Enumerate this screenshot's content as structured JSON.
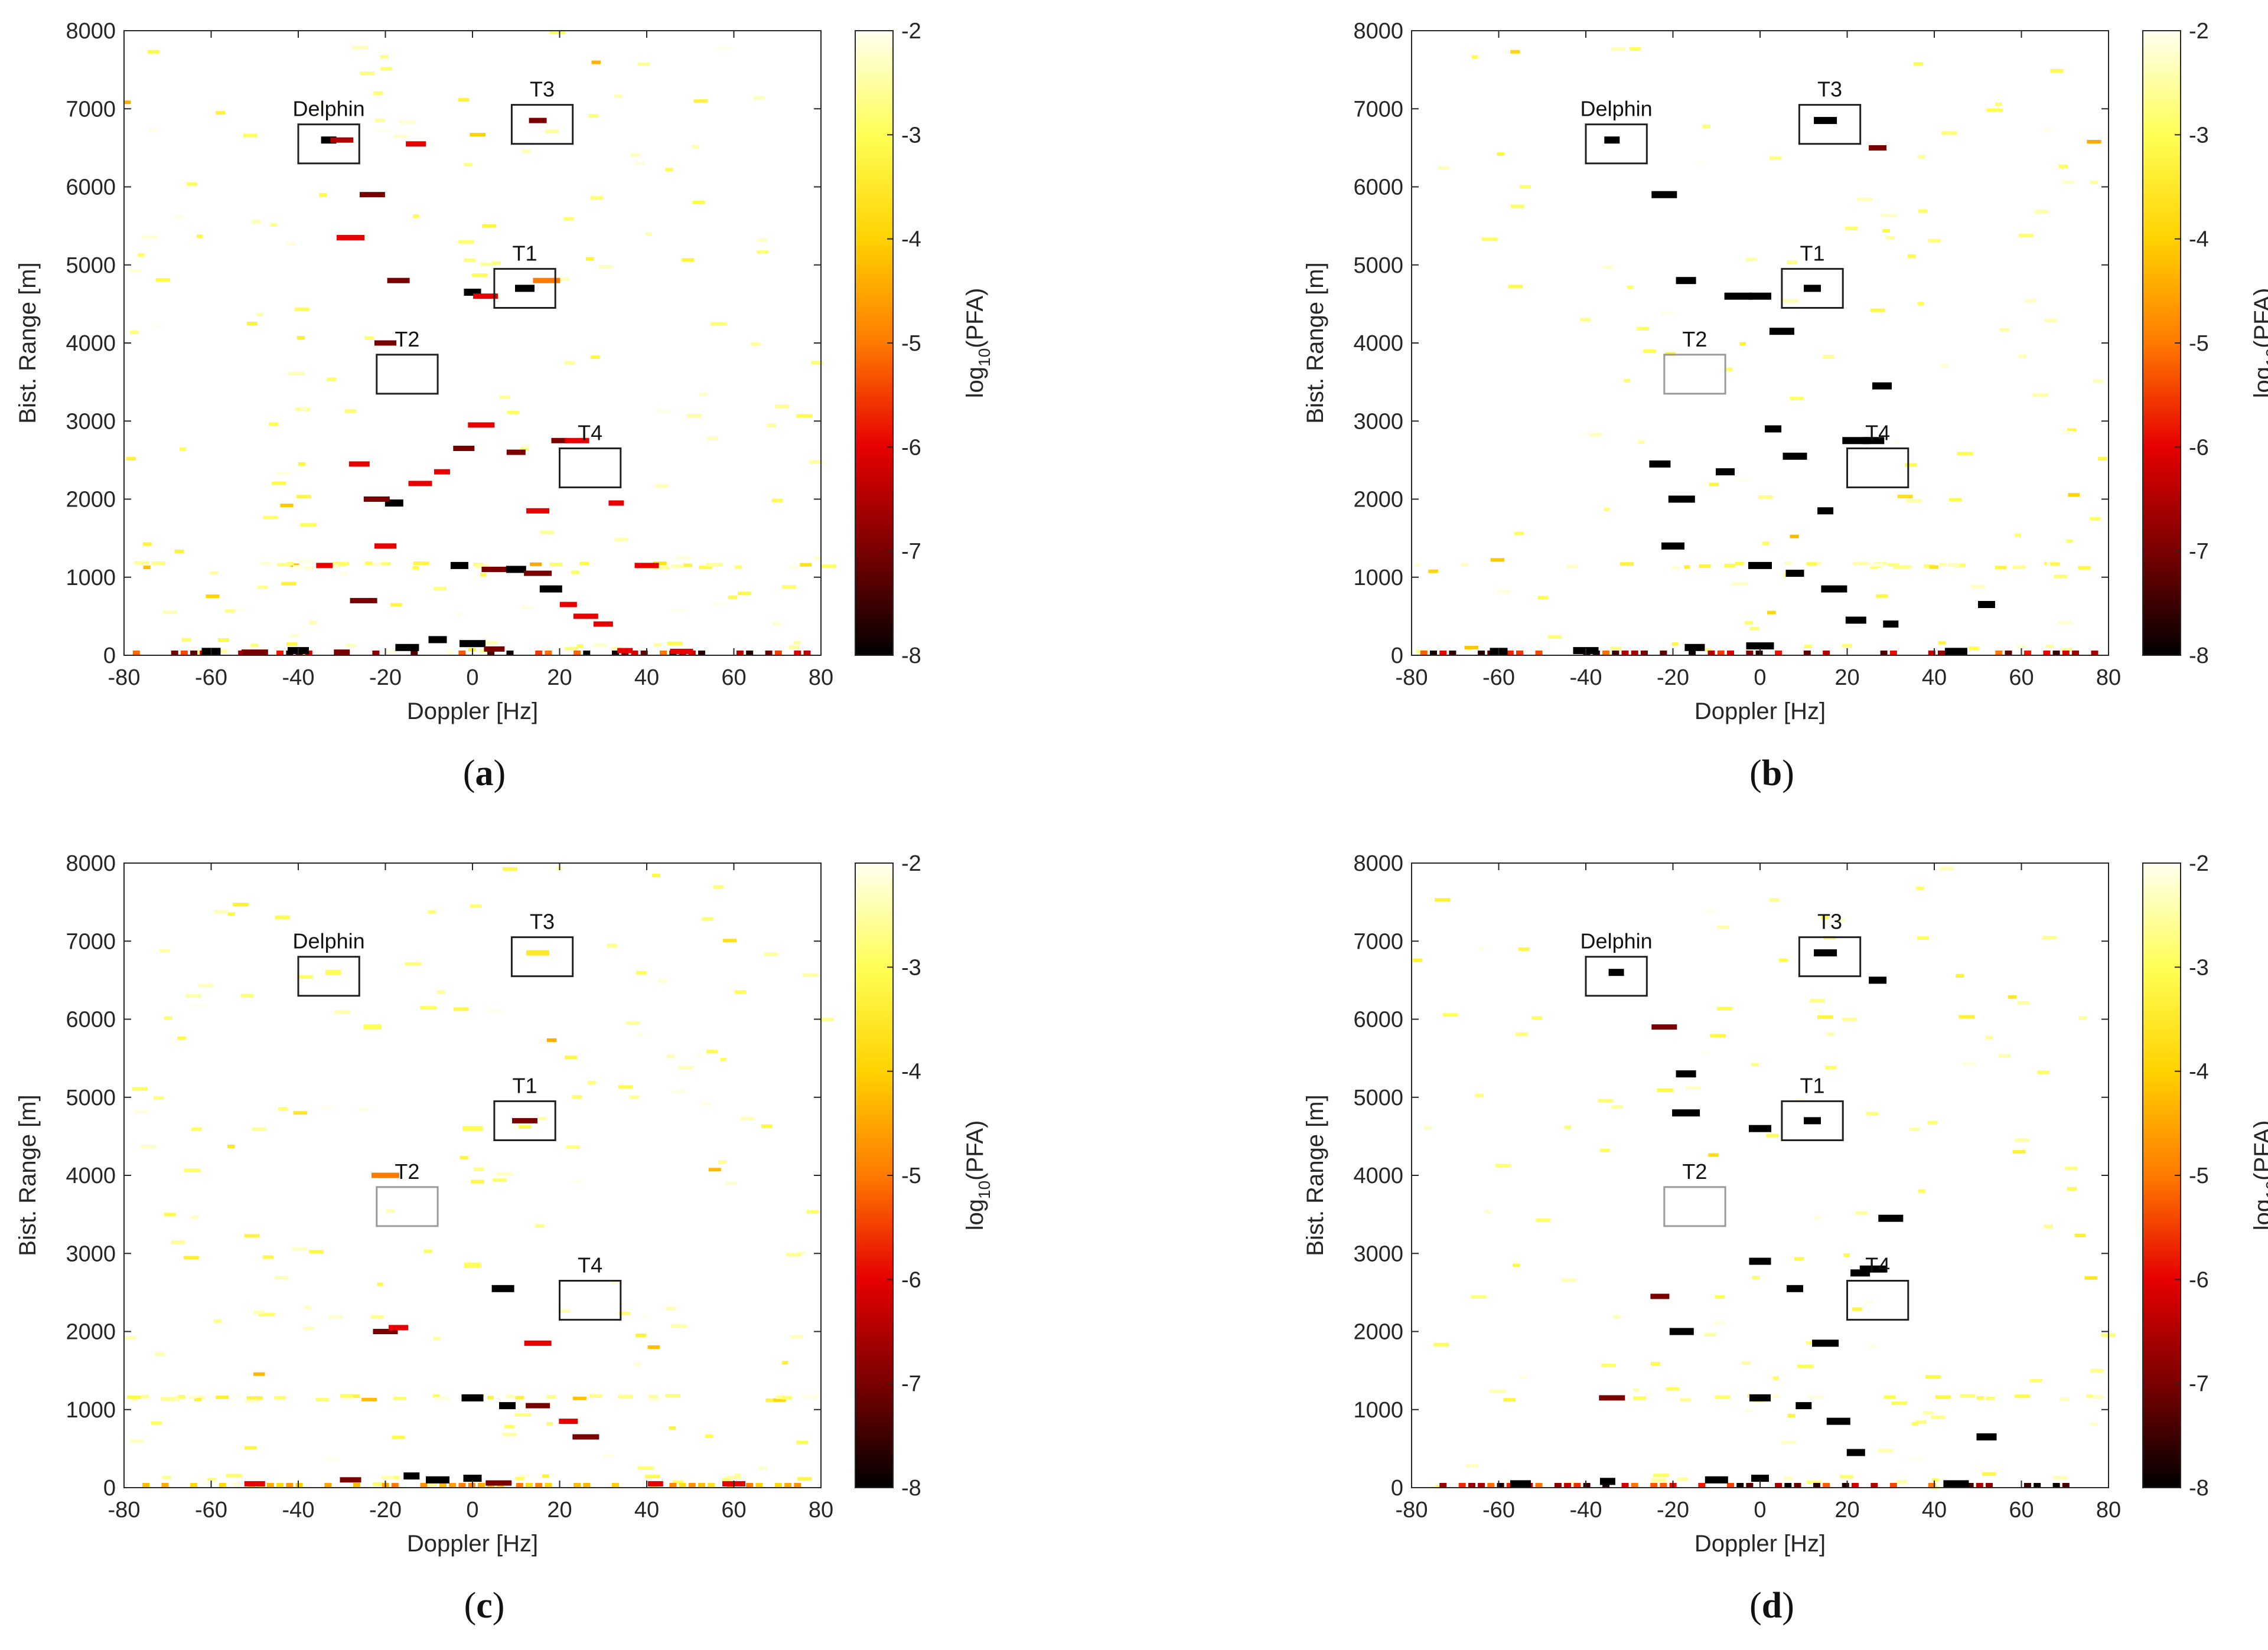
{
  "figure": {
    "colormap": {
      "name": "hot",
      "stops": [
        "#000000",
        "#7a0000",
        "#e60000",
        "#ff7a00",
        "#ffd200",
        "#ffff55",
        "#fffff0"
      ],
      "background": "#ffffff"
    },
    "colorbar": {
      "label_main": "log",
      "label_sub": "10",
      "label_tail": "(PFA)",
      "ticks": [
        "-2",
        "-3",
        "-4",
        "-5",
        "-6",
        "-7",
        "-8"
      ]
    }
  },
  "chart_data": [
    {
      "type": "heatmap",
      "panel": "a",
      "caption": "a",
      "xlabel": "Doppler [Hz]",
      "ylabel": "Bist. Range [m]",
      "xlim": [
        -80,
        80
      ],
      "ylim": [
        0,
        8000
      ],
      "xticks": [
        "-80",
        "-60",
        "-40",
        "-20",
        "0",
        "20",
        "40",
        "60",
        "80"
      ],
      "yticks": [
        "0",
        "1000",
        "2000",
        "3000",
        "4000",
        "5000",
        "6000",
        "7000",
        "8000"
      ],
      "clim": [
        -8,
        -2
      ],
      "target_boxes": [
        {
          "label": "Delphin",
          "doppler": [
            -40,
            -26
          ],
          "range": [
            6300,
            6800
          ],
          "style": "dark"
        },
        {
          "label": "T3",
          "doppler": [
            9,
            23
          ],
          "range": [
            6550,
            7050
          ],
          "style": "dark"
        },
        {
          "label": "T1",
          "doppler": [
            5,
            19
          ],
          "range": [
            4450,
            4950
          ],
          "style": "dark"
        },
        {
          "label": "T2",
          "doppler": [
            -22,
            -8
          ],
          "range": [
            3350,
            3850
          ],
          "style": "dark"
        },
        {
          "label": "T4",
          "doppler": [
            20,
            34
          ],
          "range": [
            2150,
            2650
          ],
          "style": "dark"
        }
      ],
      "detections": [
        {
          "doppler": -33,
          "range": 6600,
          "log_pfa": -8
        },
        {
          "doppler": -30,
          "range": 6600,
          "log_pfa": -6.5
        },
        {
          "doppler": 15,
          "range": 6850,
          "log_pfa": -7
        },
        {
          "doppler": -23,
          "range": 5900,
          "log_pfa": -7
        },
        {
          "doppler": -13,
          "range": 6550,
          "log_pfa": -6
        },
        {
          "doppler": -28,
          "range": 5350,
          "log_pfa": -6
        },
        {
          "doppler": -17,
          "range": 4800,
          "log_pfa": -7
        },
        {
          "doppler": 0,
          "range": 4650,
          "log_pfa": -8
        },
        {
          "doppler": 3,
          "range": 4600,
          "log_pfa": -6
        },
        {
          "doppler": 12,
          "range": 4700,
          "log_pfa": -8
        },
        {
          "doppler": 17,
          "range": 4800,
          "log_pfa": -5
        },
        {
          "doppler": -20,
          "range": 4000,
          "log_pfa": -7
        },
        {
          "doppler": 20,
          "range": 2750,
          "log_pfa": -7
        },
        {
          "doppler": 24,
          "range": 2750,
          "log_pfa": -6
        },
        {
          "doppler": 10,
          "range": 2600,
          "log_pfa": -7
        },
        {
          "doppler": 2,
          "range": 2950,
          "log_pfa": -6
        },
        {
          "doppler": -2,
          "range": 2650,
          "log_pfa": -7
        },
        {
          "doppler": -7,
          "range": 2350,
          "log_pfa": -6
        },
        {
          "doppler": -12,
          "range": 2200,
          "log_pfa": -6
        },
        {
          "doppler": -18,
          "range": 1950,
          "log_pfa": -8
        },
        {
          "doppler": -22,
          "range": 2000,
          "log_pfa": -7
        },
        {
          "doppler": -26,
          "range": 2450,
          "log_pfa": -6
        },
        {
          "doppler": 33,
          "range": 1950,
          "log_pfa": -6
        },
        {
          "doppler": 15,
          "range": 1850,
          "log_pfa": -6
        },
        {
          "doppler": -3,
          "range": 1150,
          "log_pfa": -8
        },
        {
          "doppler": 5,
          "range": 1100,
          "log_pfa": -7
        },
        {
          "doppler": 10,
          "range": 1100,
          "log_pfa": -8
        },
        {
          "doppler": 15,
          "range": 1050,
          "log_pfa": -7
        },
        {
          "doppler": 18,
          "range": 850,
          "log_pfa": -8
        },
        {
          "doppler": 22,
          "range": 650,
          "log_pfa": -6
        },
        {
          "doppler": 26,
          "range": 500,
          "log_pfa": -6
        },
        {
          "doppler": 30,
          "range": 400,
          "log_pfa": -6
        },
        {
          "doppler": -25,
          "range": 700,
          "log_pfa": -7
        },
        {
          "doppler": -20,
          "range": 1400,
          "log_pfa": -6
        },
        {
          "doppler": -34,
          "range": 1150,
          "log_pfa": -6
        },
        {
          "doppler": 40,
          "range": 1150,
          "log_pfa": -6
        },
        {
          "doppler": -60,
          "range": 50,
          "log_pfa": -8
        },
        {
          "doppler": -50,
          "range": 40,
          "log_pfa": -7
        },
        {
          "doppler": -40,
          "range": 60,
          "log_pfa": -8
        },
        {
          "doppler": -30,
          "range": 40,
          "log_pfa": -7
        },
        {
          "doppler": -15,
          "range": 100,
          "log_pfa": -8
        },
        {
          "doppler": -8,
          "range": 200,
          "log_pfa": -8
        },
        {
          "doppler": 0,
          "range": 150,
          "log_pfa": -8
        },
        {
          "doppler": 5,
          "range": 80,
          "log_pfa": -7
        },
        {
          "doppler": 35,
          "range": 60,
          "log_pfa": -6
        },
        {
          "doppler": 48,
          "range": 50,
          "log_pfa": -6
        }
      ]
    },
    {
      "type": "heatmap",
      "panel": "b",
      "caption": "b",
      "xlabel": "Doppler [Hz]",
      "ylabel": "Bist. Range [m]",
      "xlim": [
        -80,
        80
      ],
      "ylim": [
        0,
        8000
      ],
      "xticks": [
        "-80",
        "-60",
        "-40",
        "-20",
        "0",
        "20",
        "40",
        "60",
        "80"
      ],
      "yticks": [
        "0",
        "1000",
        "2000",
        "3000",
        "4000",
        "5000",
        "6000",
        "7000",
        "8000"
      ],
      "clim": [
        -8,
        -2
      ],
      "target_boxes": [
        {
          "label": "Delphin",
          "doppler": [
            -40,
            -26
          ],
          "range": [
            6300,
            6800
          ],
          "style": "dark"
        },
        {
          "label": "T3",
          "doppler": [
            9,
            23
          ],
          "range": [
            6550,
            7050
          ],
          "style": "dark"
        },
        {
          "label": "T1",
          "doppler": [
            5,
            19
          ],
          "range": [
            4450,
            4950
          ],
          "style": "dark"
        },
        {
          "label": "T2",
          "doppler": [
            -22,
            -8
          ],
          "range": [
            3350,
            3850
          ],
          "style": "light"
        },
        {
          "label": "T4",
          "doppler": [
            20,
            34
          ],
          "range": [
            2150,
            2650
          ],
          "style": "dark"
        }
      ],
      "detections": [
        {
          "doppler": -34,
          "range": 6600,
          "log_pfa": -8
        },
        {
          "doppler": 15,
          "range": 6850,
          "log_pfa": -8
        },
        {
          "doppler": 27,
          "range": 6500,
          "log_pfa": -7
        },
        {
          "doppler": -22,
          "range": 5900,
          "log_pfa": -8
        },
        {
          "doppler": -17,
          "range": 4800,
          "log_pfa": -8
        },
        {
          "doppler": -5,
          "range": 4600,
          "log_pfa": -8
        },
        {
          "doppler": 0,
          "range": 4600,
          "log_pfa": -8
        },
        {
          "doppler": 12,
          "range": 4700,
          "log_pfa": -8
        },
        {
          "doppler": 5,
          "range": 4150,
          "log_pfa": -8
        },
        {
          "doppler": 28,
          "range": 3450,
          "log_pfa": -8
        },
        {
          "doppler": 22,
          "range": 2750,
          "log_pfa": -8
        },
        {
          "doppler": 26,
          "range": 2750,
          "log_pfa": -8
        },
        {
          "doppler": 3,
          "range": 2900,
          "log_pfa": -8
        },
        {
          "doppler": 8,
          "range": 2550,
          "log_pfa": -8
        },
        {
          "doppler": -8,
          "range": 2350,
          "log_pfa": -8
        },
        {
          "doppler": -18,
          "range": 2000,
          "log_pfa": -8
        },
        {
          "doppler": -23,
          "range": 2450,
          "log_pfa": -8
        },
        {
          "doppler": 15,
          "range": 1850,
          "log_pfa": -8
        },
        {
          "doppler": 0,
          "range": 1150,
          "log_pfa": -8
        },
        {
          "doppler": 8,
          "range": 1050,
          "log_pfa": -8
        },
        {
          "doppler": 17,
          "range": 850,
          "log_pfa": -8
        },
        {
          "doppler": 22,
          "range": 450,
          "log_pfa": -8
        },
        {
          "doppler": 30,
          "range": 400,
          "log_pfa": -8
        },
        {
          "doppler": -20,
          "range": 1400,
          "log_pfa": -8
        },
        {
          "doppler": -60,
          "range": 50,
          "log_pfa": -8
        },
        {
          "doppler": -40,
          "range": 60,
          "log_pfa": -8
        },
        {
          "doppler": -15,
          "range": 100,
          "log_pfa": -8
        },
        {
          "doppler": 0,
          "range": 120,
          "log_pfa": -8
        },
        {
          "doppler": 45,
          "range": 50,
          "log_pfa": -8
        },
        {
          "doppler": 52,
          "range": 650,
          "log_pfa": -8
        }
      ]
    },
    {
      "type": "heatmap",
      "panel": "c",
      "caption": "c",
      "xlabel": "Doppler [Hz]",
      "ylabel": "Bist. Range [m]",
      "xlim": [
        -80,
        80
      ],
      "ylim": [
        0,
        8000
      ],
      "xticks": [
        "-80",
        "-60",
        "-40",
        "-20",
        "0",
        "20",
        "40",
        "60",
        "80"
      ],
      "yticks": [
        "0",
        "1000",
        "2000",
        "3000",
        "4000",
        "5000",
        "6000",
        "7000",
        "8000"
      ],
      "clim": [
        -8,
        -2
      ],
      "target_boxes": [
        {
          "label": "Delphin",
          "doppler": [
            -40,
            -26
          ],
          "range": [
            6300,
            6800
          ],
          "style": "dark"
        },
        {
          "label": "T3",
          "doppler": [
            9,
            23
          ],
          "range": [
            6550,
            7050
          ],
          "style": "dark"
        },
        {
          "label": "T1",
          "doppler": [
            5,
            19
          ],
          "range": [
            4450,
            4950
          ],
          "style": "dark"
        },
        {
          "label": "T2",
          "doppler": [
            -22,
            -8
          ],
          "range": [
            3350,
            3850
          ],
          "style": "light"
        },
        {
          "label": "T4",
          "doppler": [
            20,
            34
          ],
          "range": [
            2150,
            2650
          ],
          "style": "dark"
        }
      ],
      "detections": [
        {
          "doppler": -32,
          "range": 6600,
          "log_pfa": -3
        },
        {
          "doppler": 15,
          "range": 6850,
          "log_pfa": -3.5
        },
        {
          "doppler": -23,
          "range": 5900,
          "log_pfa": -3
        },
        {
          "doppler": 12,
          "range": 4700,
          "log_pfa": -7
        },
        {
          "doppler": 0,
          "range": 4600,
          "log_pfa": -3
        },
        {
          "doppler": -20,
          "range": 4000,
          "log_pfa": -5
        },
        {
          "doppler": 7,
          "range": 2550,
          "log_pfa": -8
        },
        {
          "doppler": 0,
          "range": 2850,
          "log_pfa": -3
        },
        {
          "doppler": -20,
          "range": 2000,
          "log_pfa": -7
        },
        {
          "doppler": -17,
          "range": 2050,
          "log_pfa": -6
        },
        {
          "doppler": 15,
          "range": 1850,
          "log_pfa": -6
        },
        {
          "doppler": 0,
          "range": 1150,
          "log_pfa": -8
        },
        {
          "doppler": 8,
          "range": 1050,
          "log_pfa": -8
        },
        {
          "doppler": 15,
          "range": 1050,
          "log_pfa": -7
        },
        {
          "doppler": 22,
          "range": 850,
          "log_pfa": -6
        },
        {
          "doppler": 26,
          "range": 650,
          "log_pfa": -7
        },
        {
          "doppler": -28,
          "range": 100,
          "log_pfa": -7
        },
        {
          "doppler": -14,
          "range": 150,
          "log_pfa": -8
        },
        {
          "doppler": -8,
          "range": 100,
          "log_pfa": -8
        },
        {
          "doppler": 0,
          "range": 120,
          "log_pfa": -8
        },
        {
          "doppler": 6,
          "range": 60,
          "log_pfa": -7
        },
        {
          "doppler": -50,
          "range": 50,
          "log_pfa": -6
        },
        {
          "doppler": 42,
          "range": 50,
          "log_pfa": -6
        },
        {
          "doppler": 60,
          "range": 50,
          "log_pfa": -6
        }
      ]
    },
    {
      "type": "heatmap",
      "panel": "d",
      "caption": "d",
      "xlabel": "Doppler [Hz]",
      "ylabel": "Bist. Range [m]",
      "xlim": [
        -80,
        80
      ],
      "ylim": [
        0,
        8000
      ],
      "xticks": [
        "-80",
        "-60",
        "-40",
        "-20",
        "0",
        "20",
        "40",
        "60",
        "80"
      ],
      "yticks": [
        "0",
        "1000",
        "2000",
        "3000",
        "4000",
        "5000",
        "6000",
        "7000",
        "8000"
      ],
      "clim": [
        -8,
        -2
      ],
      "target_boxes": [
        {
          "label": "Delphin",
          "doppler": [
            -40,
            -26
          ],
          "range": [
            6300,
            6800
          ],
          "style": "dark"
        },
        {
          "label": "T3",
          "doppler": [
            9,
            23
          ],
          "range": [
            6550,
            7050
          ],
          "style": "dark"
        },
        {
          "label": "T1",
          "doppler": [
            5,
            19
          ],
          "range": [
            4450,
            4950
          ],
          "style": "dark"
        },
        {
          "label": "T2",
          "doppler": [
            -22,
            -8
          ],
          "range": [
            3350,
            3850
          ],
          "style": "light"
        },
        {
          "label": "T4",
          "doppler": [
            20,
            34
          ],
          "range": [
            2150,
            2650
          ],
          "style": "dark"
        }
      ],
      "detections": [
        {
          "doppler": -33,
          "range": 6600,
          "log_pfa": -8
        },
        {
          "doppler": 15,
          "range": 6850,
          "log_pfa": -8
        },
        {
          "doppler": 27,
          "range": 6500,
          "log_pfa": -8
        },
        {
          "doppler": -22,
          "range": 5900,
          "log_pfa": -7
        },
        {
          "doppler": -17,
          "range": 5300,
          "log_pfa": -8
        },
        {
          "doppler": -17,
          "range": 4800,
          "log_pfa": -8
        },
        {
          "doppler": 0,
          "range": 4600,
          "log_pfa": -8
        },
        {
          "doppler": 12,
          "range": 4700,
          "log_pfa": -8
        },
        {
          "doppler": 30,
          "range": 3450,
          "log_pfa": -8
        },
        {
          "doppler": 23,
          "range": 2750,
          "log_pfa": -8
        },
        {
          "doppler": 26,
          "range": 2800,
          "log_pfa": -8
        },
        {
          "doppler": 0,
          "range": 2900,
          "log_pfa": -8
        },
        {
          "doppler": 8,
          "range": 2550,
          "log_pfa": -8
        },
        {
          "doppler": -18,
          "range": 2000,
          "log_pfa": -8
        },
        {
          "doppler": -23,
          "range": 2450,
          "log_pfa": -7
        },
        {
          "doppler": 15,
          "range": 1850,
          "log_pfa": -8
        },
        {
          "doppler": 0,
          "range": 1150,
          "log_pfa": -8
        },
        {
          "doppler": 10,
          "range": 1050,
          "log_pfa": -8
        },
        {
          "doppler": 18,
          "range": 850,
          "log_pfa": -8
        },
        {
          "doppler": 22,
          "range": 450,
          "log_pfa": -8
        },
        {
          "doppler": -34,
          "range": 1150,
          "log_pfa": -7
        },
        {
          "doppler": -55,
          "range": 50,
          "log_pfa": -8
        },
        {
          "doppler": -35,
          "range": 80,
          "log_pfa": -8
        },
        {
          "doppler": -10,
          "range": 100,
          "log_pfa": -8
        },
        {
          "doppler": 0,
          "range": 120,
          "log_pfa": -8
        },
        {
          "doppler": 45,
          "range": 50,
          "log_pfa": -8
        },
        {
          "doppler": 52,
          "range": 650,
          "log_pfa": -8
        }
      ]
    }
  ]
}
